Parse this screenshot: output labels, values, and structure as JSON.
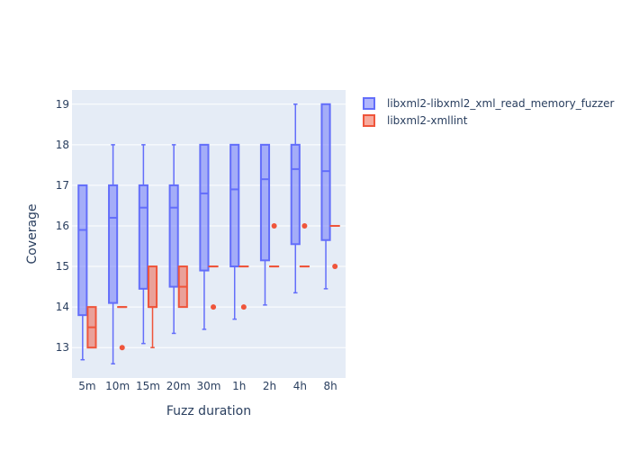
{
  "chart_data": {
    "type": "box",
    "xlabel": "Fuzz duration",
    "ylabel": "Coverage",
    "categories": [
      "5m",
      "10m",
      "15m",
      "20m",
      "30m",
      "1h",
      "2h",
      "4h",
      "8h"
    ],
    "ylim": [
      12.25,
      19.35
    ],
    "yticks": [
      13,
      14,
      15,
      16,
      17,
      18,
      19
    ],
    "grid": true,
    "legend_position": "top-right",
    "series": [
      {
        "name": "libxml2-libxml2_xml_read_memory_fuzzer",
        "color": "#636efa",
        "boxes": [
          {
            "category": "5m",
            "min": 12.7,
            "q1": 13.8,
            "median": 15.9,
            "q3": 17.0,
            "max": 17.0
          },
          {
            "category": "10m",
            "min": 12.6,
            "q1": 14.1,
            "median": 16.2,
            "q3": 17.0,
            "max": 18.0
          },
          {
            "category": "15m",
            "min": 13.1,
            "q1": 14.45,
            "median": 16.45,
            "q3": 17.0,
            "max": 18.0
          },
          {
            "category": "20m",
            "min": 13.35,
            "q1": 14.5,
            "median": 16.45,
            "q3": 17.0,
            "max": 18.0
          },
          {
            "category": "30m",
            "min": 13.45,
            "q1": 14.9,
            "median": 16.8,
            "q3": 18.0,
            "max": 18.0
          },
          {
            "category": "1h",
            "min": 13.7,
            "q1": 15.0,
            "median": 16.9,
            "q3": 18.0,
            "max": 18.0
          },
          {
            "category": "2h",
            "min": 14.05,
            "q1": 15.15,
            "median": 17.15,
            "q3": 18.0,
            "max": 18.0
          },
          {
            "category": "4h",
            "min": 14.35,
            "q1": 15.55,
            "median": 17.4,
            "q3": 18.0,
            "max": 19.0
          },
          {
            "category": "8h",
            "min": 14.45,
            "q1": 15.65,
            "median": 17.35,
            "q3": 19.0,
            "max": 19.0
          }
        ]
      },
      {
        "name": "libxml2-xmllint",
        "color": "#ef553b",
        "boxes": [
          {
            "category": "5m",
            "min": 13.0,
            "q1": 13.0,
            "median": 13.5,
            "q3": 14.0,
            "max": 14.0,
            "outliers": []
          },
          {
            "category": "10m",
            "min": 14.0,
            "q1": 14.0,
            "median": 14.0,
            "q3": 14.0,
            "max": 14.0,
            "outliers": [
              13.0
            ]
          },
          {
            "category": "15m",
            "min": 13.0,
            "q1": 14.0,
            "median": 14.0,
            "q3": 15.0,
            "max": 15.0,
            "outliers": []
          },
          {
            "category": "20m",
            "min": 14.0,
            "q1": 14.0,
            "median": 14.5,
            "q3": 15.0,
            "max": 15.0,
            "outliers": []
          },
          {
            "category": "30m",
            "min": 15.0,
            "q1": 15.0,
            "median": 15.0,
            "q3": 15.0,
            "max": 15.0,
            "outliers": [
              14.0
            ]
          },
          {
            "category": "1h",
            "min": 15.0,
            "q1": 15.0,
            "median": 15.0,
            "q3": 15.0,
            "max": 15.0,
            "outliers": [
              14.0
            ]
          },
          {
            "category": "2h",
            "min": 15.0,
            "q1": 15.0,
            "median": 15.0,
            "q3": 15.0,
            "max": 15.0,
            "outliers": [
              16.0
            ]
          },
          {
            "category": "4h",
            "min": 15.0,
            "q1": 15.0,
            "median": 15.0,
            "q3": 15.0,
            "max": 15.0,
            "outliers": [
              16.0
            ]
          },
          {
            "category": "8h",
            "min": 16.0,
            "q1": 16.0,
            "median": 16.0,
            "q3": 16.0,
            "max": 16.0,
            "outliers": [
              15.0
            ]
          }
        ]
      }
    ]
  }
}
